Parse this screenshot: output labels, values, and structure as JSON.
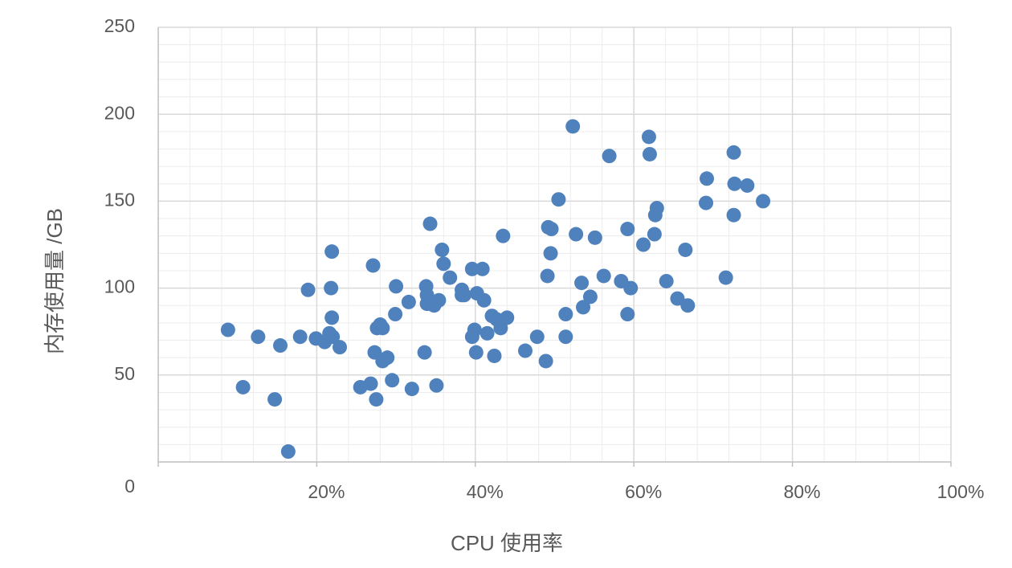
{
  "chart_data": {
    "type": "scatter",
    "x_label": "CPU 使用率",
    "y_label": "内存使用量 /GB",
    "color": "#4f81bd",
    "grid": true,
    "minor_grid": true,
    "xlim": [
      0,
      1
    ],
    "ylim": [
      0,
      250
    ],
    "xticks": [
      {
        "value": 0.2,
        "label": "20%"
      },
      {
        "value": 0.4,
        "label": "40%"
      },
      {
        "value": 0.6,
        "label": "60%"
      },
      {
        "value": 0.8,
        "label": "80%"
      },
      {
        "value": 1.0,
        "label": "100%"
      }
    ],
    "yticks": [
      0,
      50,
      100,
      150,
      200,
      250
    ],
    "x": [
      0.088,
      0.107,
      0.126,
      0.147,
      0.154,
      0.164,
      0.179,
      0.189,
      0.199,
      0.21,
      0.216,
      0.22,
      0.218,
      0.219,
      0.219,
      0.229,
      0.255,
      0.268,
      0.271,
      0.273,
      0.275,
      0.276,
      0.28,
      0.283,
      0.283,
      0.289,
      0.295,
      0.299,
      0.3,
      0.316,
      0.32,
      0.336,
      0.338,
      0.339,
      0.339,
      0.343,
      0.348,
      0.351,
      0.354,
      0.358,
      0.36,
      0.368,
      0.383,
      0.383,
      0.386,
      0.396,
      0.396,
      0.399,
      0.401,
      0.402,
      0.409,
      0.411,
      0.415,
      0.421,
      0.424,
      0.427,
      0.432,
      0.433,
      0.435,
      0.44,
      0.463,
      0.478,
      0.489,
      0.491,
      0.492,
      0.496,
      0.495,
      0.505,
      0.514,
      0.514,
      0.523,
      0.527,
      0.534,
      0.536,
      0.545,
      0.551,
      0.562,
      0.569,
      0.584,
      0.592,
      0.592,
      0.596,
      0.612,
      0.619,
      0.62,
      0.626,
      0.627,
      0.629,
      0.641,
      0.655,
      0.665,
      0.668,
      0.692,
      0.691,
      0.716,
      0.726,
      0.727,
      0.726,
      0.743,
      0.763
    ],
    "values": [
      76,
      43,
      72,
      36,
      67,
      6,
      72,
      99,
      71,
      69,
      74,
      72,
      100,
      121,
      83,
      66,
      43,
      45,
      113,
      63,
      36,
      77,
      79,
      77,
      58,
      60,
      47,
      85,
      101,
      92,
      42,
      63,
      101,
      96,
      91,
      137,
      90,
      44,
      93,
      122,
      114,
      106,
      99,
      96,
      96,
      72,
      111,
      76,
      63,
      97,
      111,
      93,
      74,
      84,
      61,
      82,
      77,
      81,
      130,
      83,
      64,
      72,
      58,
      107,
      135,
      134,
      120,
      151,
      85,
      72,
      193,
      131,
      103,
      89,
      95,
      129,
      107,
      176,
      104,
      134,
      85,
      100,
      125,
      187,
      177,
      131,
      142,
      146,
      104,
      94,
      122,
      90,
      163,
      149,
      106,
      178,
      160,
      142,
      159,
      150
    ]
  }
}
